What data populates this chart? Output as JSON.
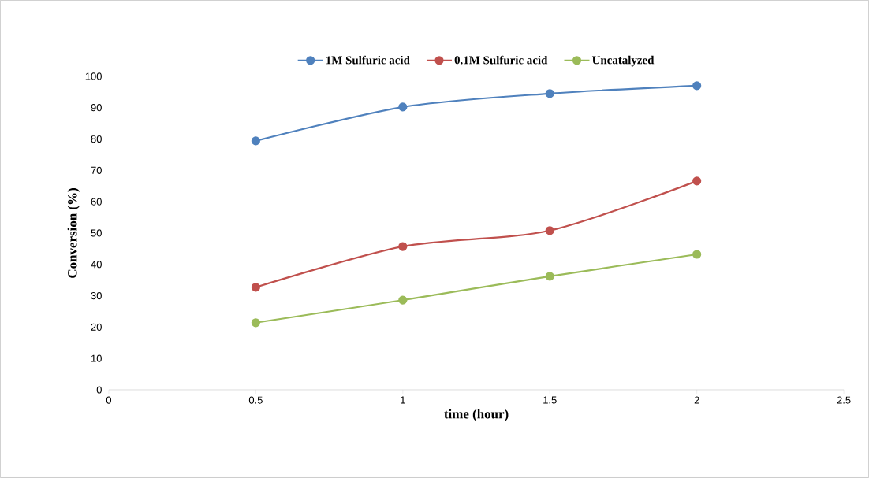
{
  "chart_data": {
    "type": "line",
    "xlabel": "time (hour)",
    "ylabel": "Conversion (%)",
    "x": [
      0.5,
      1,
      1.5,
      2
    ],
    "series": [
      {
        "name": "1M Sulfuric acid",
        "color": "#4f81bd",
        "values": [
          79.4,
          90.2,
          94.5,
          97.0
        ]
      },
      {
        "name": "0.1M Sulfuric acid",
        "color": "#c0504d",
        "values": [
          32.7,
          45.7,
          50.8,
          66.6
        ]
      },
      {
        "name": "Uncatalyzed",
        "color": "#9bbb59",
        "values": [
          21.4,
          28.6,
          36.2,
          43.2
        ]
      }
    ],
    "xlim": [
      0,
      2.5
    ],
    "xticks": [
      0,
      0.5,
      1,
      1.5,
      2,
      2.5
    ],
    "ylim": [
      0,
      100
    ],
    "yticks": [
      0,
      10,
      20,
      30,
      40,
      50,
      60,
      70,
      80,
      90,
      100
    ],
    "grid": false,
    "legend": "top",
    "marker": "circle",
    "line_style": "solid"
  }
}
